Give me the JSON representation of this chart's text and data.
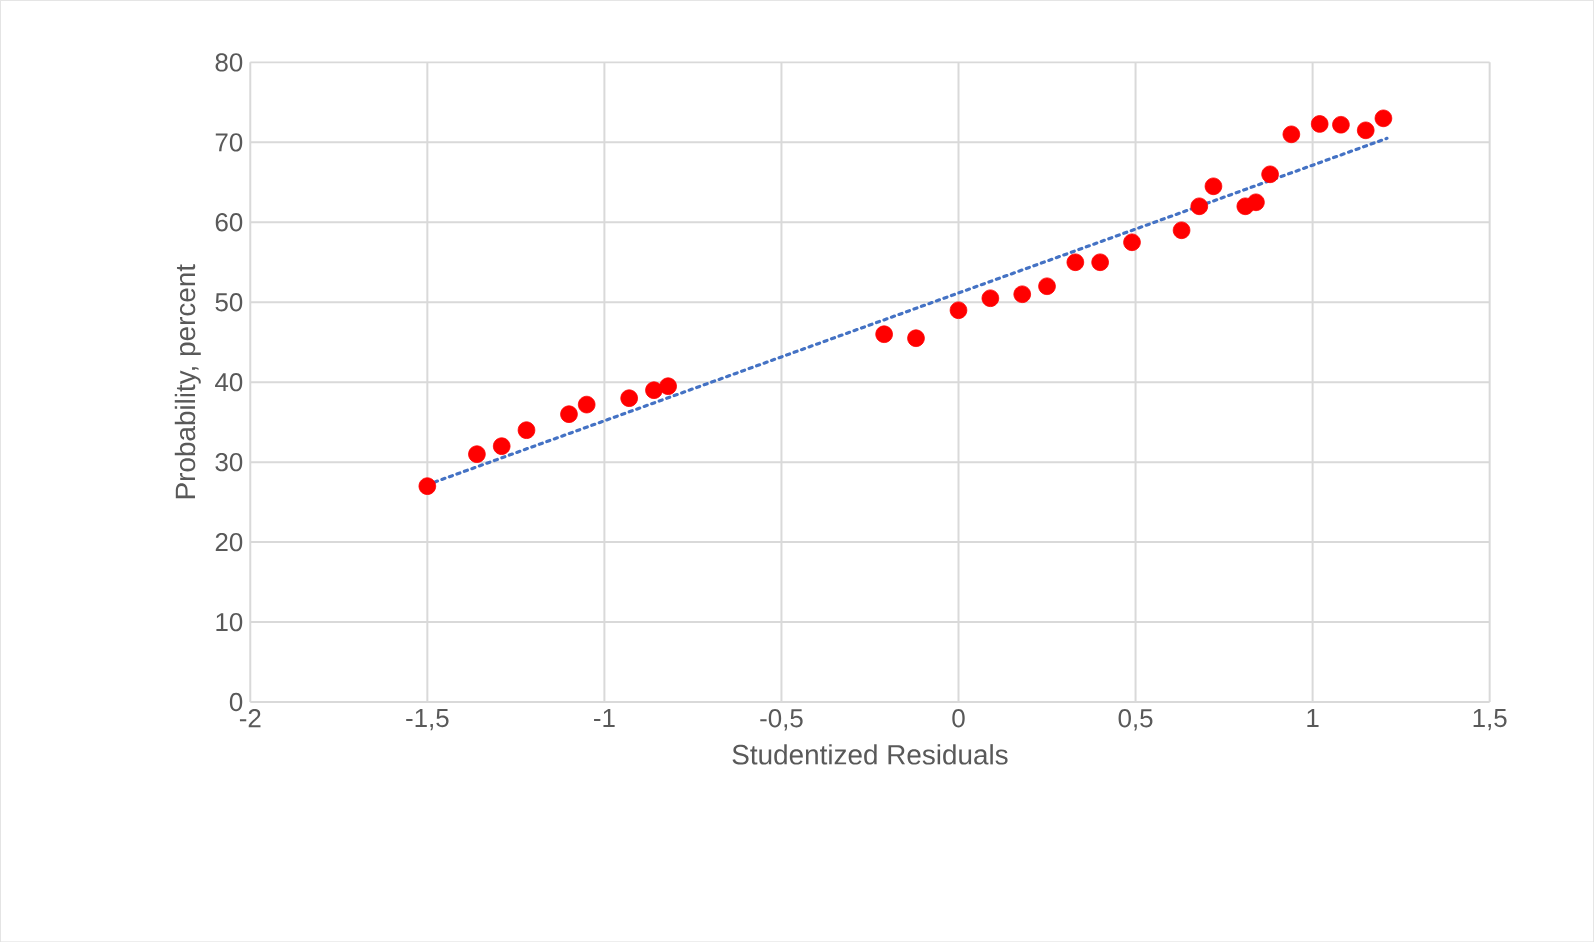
{
  "chart_data": {
    "type": "scatter",
    "xlabel": "Studentized Residuals",
    "ylabel": "Probability, percent",
    "xlim": [
      -2,
      1.5
    ],
    "ylim": [
      0,
      80
    ],
    "xticks": [
      -2,
      {
        "value": -1.5,
        "label": "-1,5"
      },
      -1,
      {
        "value": -0.5,
        "label": "-0,5"
      },
      0,
      {
        "value": 0.5,
        "label": "0,5"
      },
      1,
      {
        "value": 1.5,
        "label": "1,5"
      }
    ],
    "yticks": [
      0,
      10,
      20,
      30,
      40,
      50,
      60,
      70,
      80
    ],
    "grid": true,
    "series": [
      {
        "marker": "circle",
        "color": "#ff0000",
        "x": [
          -1.5,
          -1.36,
          -1.29,
          -1.22,
          -1.1,
          -1.05,
          -0.93,
          -0.86,
          -0.82,
          -0.21,
          -0.12,
          0,
          0.09,
          0.18,
          0.25,
          0.33,
          0.4,
          0.49,
          0.63,
          0.68,
          0.72,
          0.81,
          0.84,
          0.88,
          0.94,
          1.02,
          1.08,
          1.15,
          1.2
        ],
        "values": [
          27,
          31,
          32,
          34,
          36,
          37.2,
          38,
          39,
          39.5,
          46,
          45.5,
          49,
          50.5,
          51,
          52,
          55,
          55,
          57.5,
          59,
          62,
          64.5,
          62,
          62.5,
          66,
          71,
          72.3,
          72.2,
          71.5,
          73
        ]
      },
      {
        "type": "line",
        "color": "#4472c4",
        "line_style": "dotted",
        "x": [
          -1.48,
          1.21
        ],
        "values": [
          27.5,
          70.5
        ]
      }
    ]
  }
}
